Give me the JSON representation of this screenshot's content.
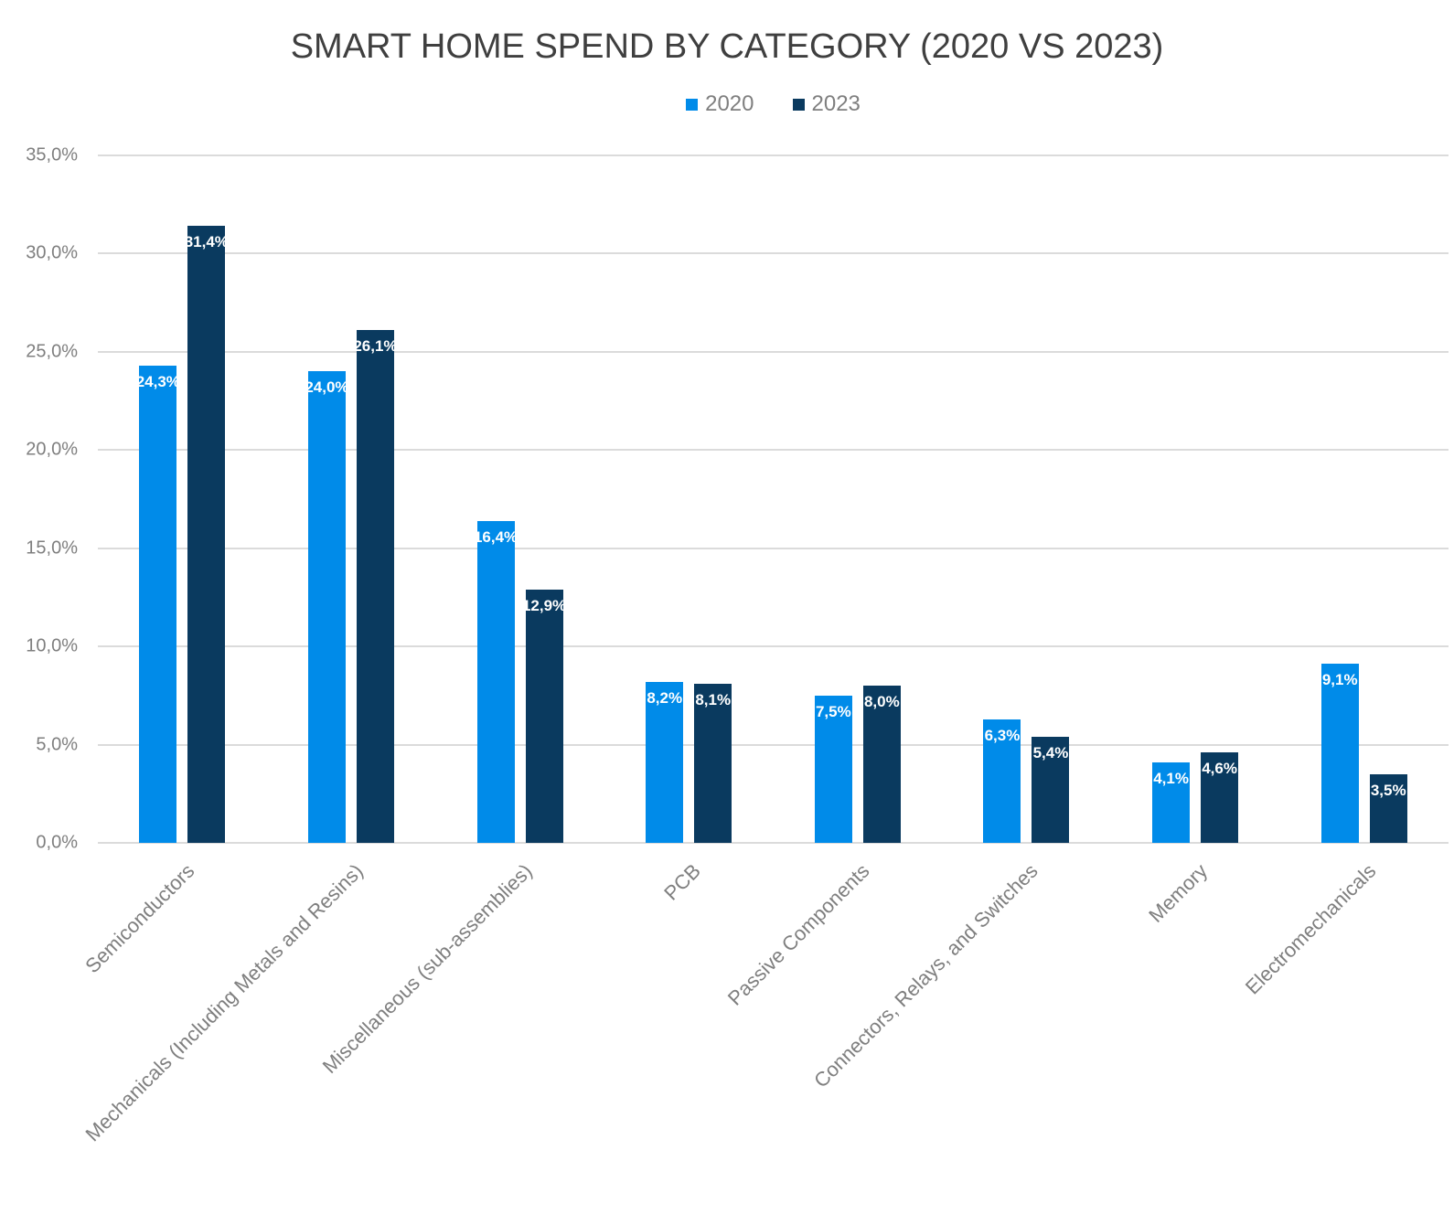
{
  "title": "SMART HOME SPEND BY CATEGORY (2020 VS 2023)",
  "colors": {
    "series_2020": "#008BE9",
    "series_2023": "#0A3A5F",
    "title_text": "#3f3f3f",
    "axis_text": "#7f7f7f",
    "gridline": "#dbdbdb",
    "value_label_text": "#ffffff"
  },
  "chart_data": {
    "type": "bar",
    "title": "SMART HOME SPEND BY CATEGORY (2020 VS 2023)",
    "categories": [
      "Semiconductors",
      "Mechanicals (Including Metals and Resins)",
      "Miscellaneous (sub-assemblies)",
      "PCB",
      "Passive Components",
      "Connectors, Relays, and Switches",
      "Memory",
      "Electromechanicals"
    ],
    "series": [
      {
        "name": "2020",
        "color": "#008BE9",
        "values": [
          24.3,
          24.0,
          16.4,
          8.2,
          7.5,
          6.3,
          4.1,
          9.1
        ]
      },
      {
        "name": "2023",
        "color": "#0A3A5F",
        "values": [
          31.4,
          26.1,
          12.9,
          8.1,
          8.0,
          5.4,
          4.6,
          3.5
        ]
      }
    ],
    "value_label_format": "comma-decimal-percent",
    "value_labels_position": "inside-top",
    "xlabel": "",
    "ylabel": "",
    "ylim": [
      0,
      35
    ],
    "ytick_step": 5,
    "ytick_labels": [
      "0,0%",
      "5,0%",
      "10,0%",
      "15,0%",
      "20,0%",
      "25,0%",
      "30,0%",
      "35,0%"
    ],
    "grid": true,
    "legend_position": "top-center",
    "xtick_rotation_deg": -45
  }
}
